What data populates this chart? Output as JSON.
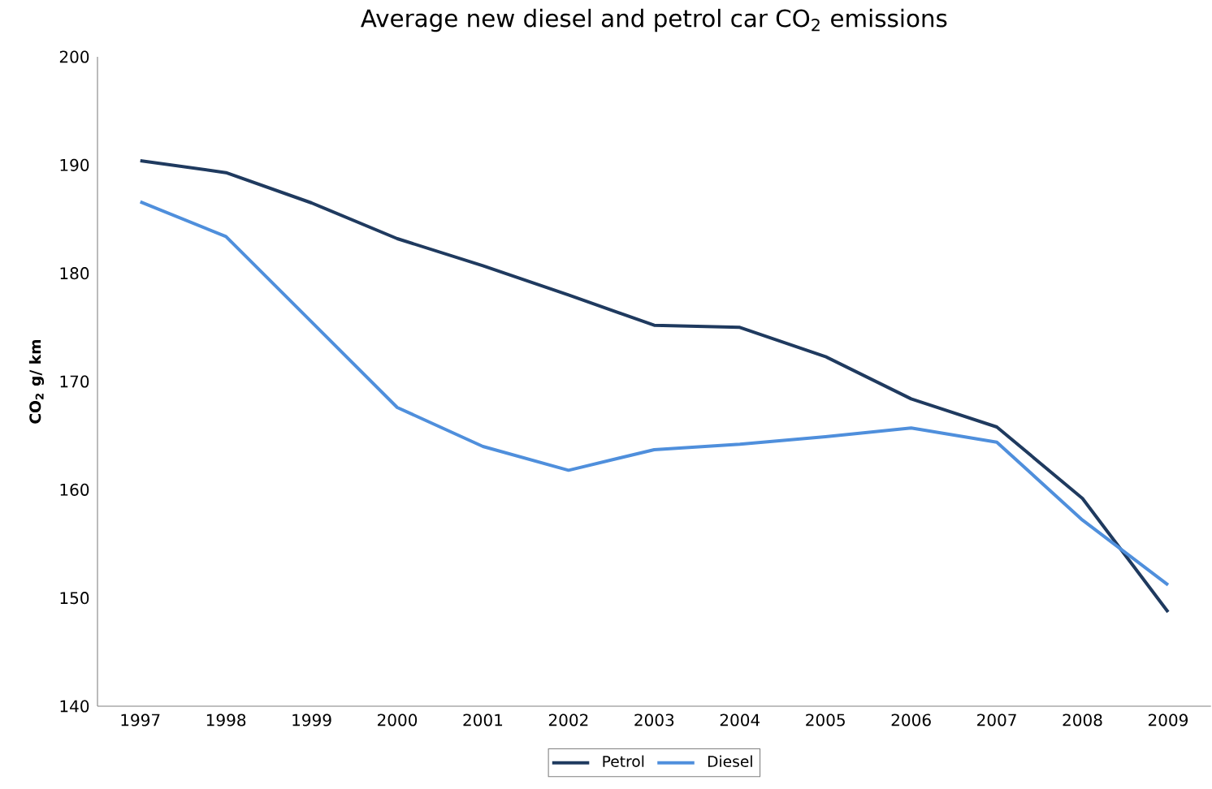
{
  "chart_data": {
    "type": "line",
    "title": "Average new diesel and petrol car CO$_{2}$ emissions",
    "ylabel": "**CO$_{2}$ g/ km**",
    "categories": [
      "1997",
      "1998",
      "1999",
      "2000",
      "2001",
      "2002",
      "2003",
      "2004",
      "2005",
      "2006",
      "2007",
      "2008",
      "2009"
    ],
    "series": [
      {
        "name": "Petrol",
        "color": "#1f3a5f",
        "values": [
          190.4,
          189.3,
          186.5,
          183.2,
          180.7,
          178.0,
          175.2,
          175.0,
          172.3,
          168.4,
          165.8,
          159.2,
          148.7
        ]
      },
      {
        "name": "Diesel",
        "color": "#4f8fdc",
        "values": [
          186.6,
          183.4,
          175.5,
          167.6,
          164.0,
          161.8,
          163.7,
          164.2,
          164.9,
          165.7,
          164.4,
          157.2,
          151.2
        ]
      }
    ],
    "ylim": [
      140,
      200
    ],
    "yticks": [
      140,
      150,
      160,
      170,
      180,
      190,
      200
    ],
    "grid": false,
    "legend": "bottom",
    "marker": "none",
    "line_style": "solid"
  }
}
